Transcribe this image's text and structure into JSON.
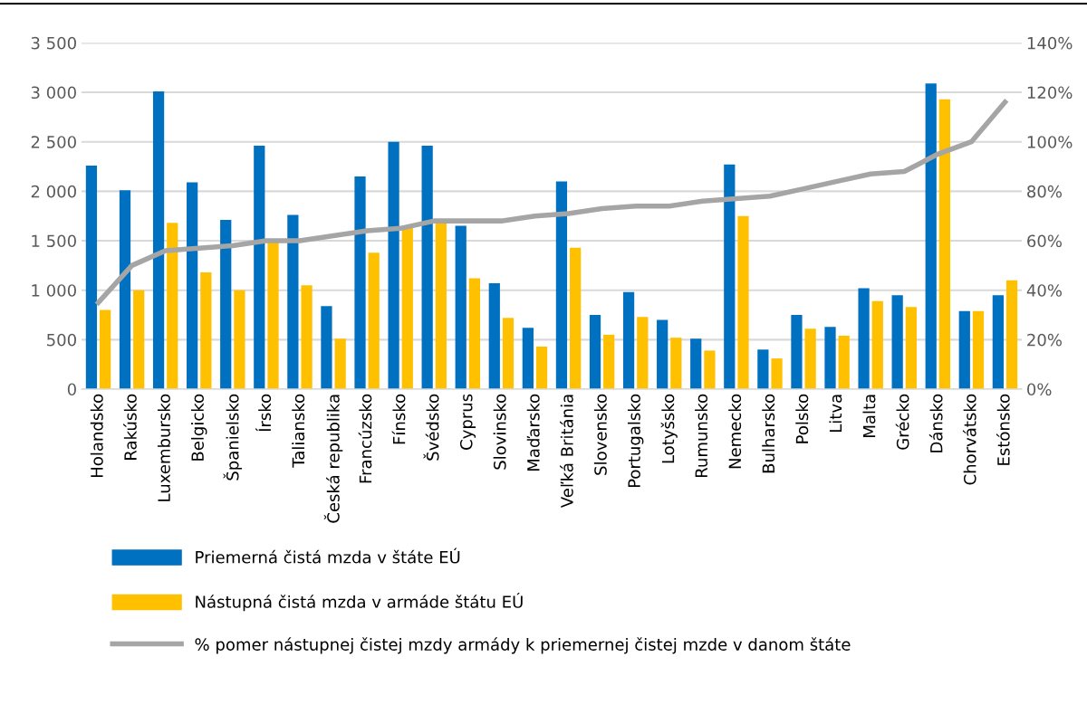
{
  "chart_data": {
    "type": "bar",
    "categories": [
      "Holandsko",
      "Rakúsko",
      "Luxembursko",
      "Belgicko",
      "Španielsko",
      "Írsko",
      "Taliansko",
      "Česká republika",
      "Francúzsko",
      "Fínsko",
      "Švédsko",
      "Cyprus",
      "Slovinsko",
      "Maďarsko",
      "Veľká Británia",
      "Slovensko",
      "Portugalsko",
      "Lotyšsko",
      "Rumunsko",
      "Nemecko",
      "Bulharsko",
      "Polsko",
      "Litva",
      "Malta",
      "Grécko",
      "Dánsko",
      "Chorvátsko",
      "Estónsko"
    ],
    "series": [
      {
        "name": "Priemerná čistá mzda v štáte EÚ",
        "color": "#0070c0",
        "values": [
          2260,
          2010,
          3010,
          2090,
          1710,
          2460,
          1760,
          840,
          2150,
          2500,
          2460,
          1650,
          1070,
          620,
          2100,
          750,
          980,
          700,
          510,
          2270,
          400,
          750,
          630,
          1020,
          950,
          3090,
          790,
          950
        ]
      },
      {
        "name": "Nástupná čistá mzda v armáde štátu EÚ",
        "color": "#ffc000",
        "values": [
          800,
          1000,
          1680,
          1180,
          1000,
          1500,
          1050,
          510,
          1380,
          1640,
          1680,
          1120,
          720,
          430,
          1430,
          550,
          730,
          520,
          390,
          1750,
          310,
          610,
          540,
          890,
          830,
          2930,
          790,
          1100
        ]
      },
      {
        "name": "% pomer nástupnej čistej mzdy armády k priemernej čistej mzde v danom štáte",
        "type": "line",
        "axis": "y2",
        "color": "#a5a5a5",
        "values": [
          35,
          50,
          56,
          57,
          58,
          60,
          60,
          62,
          64,
          65,
          68,
          68,
          68,
          70,
          71,
          73,
          74,
          74,
          76,
          77,
          78,
          81,
          84,
          87,
          88,
          95,
          100,
          116
        ]
      }
    ],
    "ylim": [
      0,
      3500
    ],
    "yticks": [
      0,
      {
        "value": 500,
        "label": "500"
      },
      {
        "value": 1000,
        "label": "1 000"
      },
      {
        "value": 1500,
        "label": "1 500"
      },
      {
        "value": 2000,
        "label": "2 000"
      },
      {
        "value": 2500,
        "label": "2 500"
      },
      {
        "value": 3000,
        "label": "3 000"
      },
      {
        "value": 3500,
        "label": "3 500"
      }
    ],
    "y2lim": [
      0,
      140
    ],
    "y2ticks": [
      {
        "value": 0,
        "label": "0%"
      },
      {
        "value": 20,
        "label": "20%"
      },
      {
        "value": 40,
        "label": "40%"
      },
      {
        "value": 60,
        "label": "60%"
      },
      {
        "value": 80,
        "label": "80%"
      },
      {
        "value": 100,
        "label": "100%"
      },
      {
        "value": 120,
        "label": "120%"
      },
      {
        "value": 140,
        "label": "140%"
      }
    ],
    "grid": "y",
    "legend": "bottom left",
    "marker": "none",
    "line_style": "solid"
  }
}
